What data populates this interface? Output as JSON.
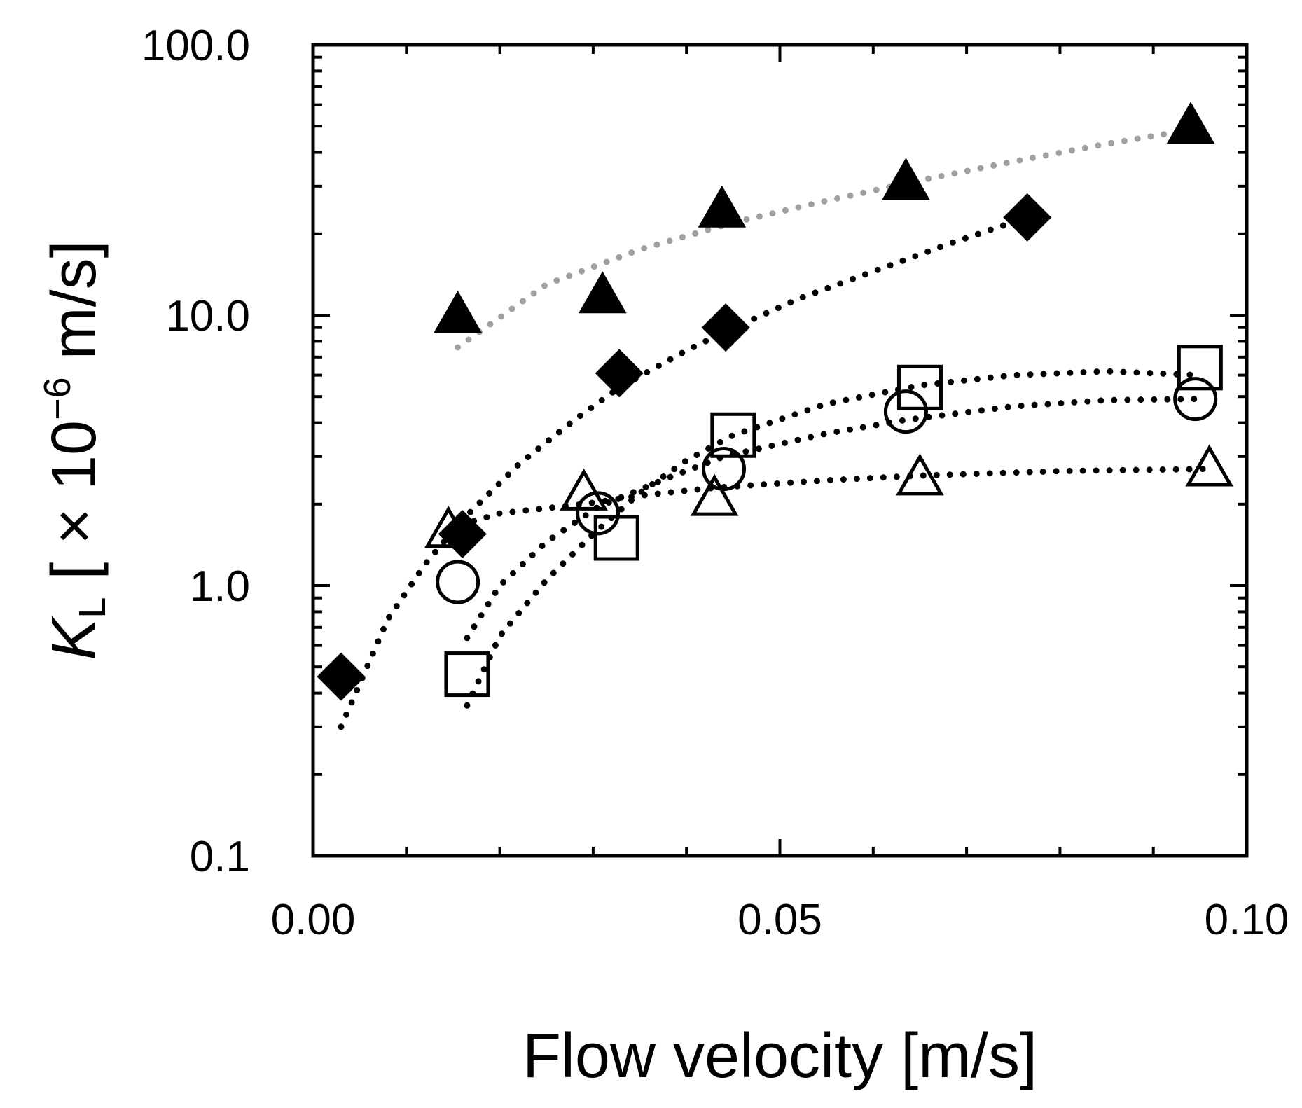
{
  "chart_data": {
    "type": "scatter",
    "title": "",
    "xlabel": "Flow velocity [m/s]",
    "ylabel": {
      "symbol": "K",
      "subscript": "L",
      "unit_open": " [ × 10",
      "exponent": "−6",
      "unit_close": " m/s]"
    },
    "xscale": "linear",
    "yscale": "log",
    "xlim": [
      0.0,
      0.1
    ],
    "ylim": [
      0.1,
      100.0
    ],
    "x_tick_labels": [
      {
        "value": 0.0,
        "label": "0.00"
      },
      {
        "value": 0.05,
        "label": "0.05"
      },
      {
        "value": 0.1,
        "label": "0.10"
      }
    ],
    "y_tick_labels": [
      {
        "value": 0.1,
        "label": "0.1"
      },
      {
        "value": 1.0,
        "label": "1.0"
      },
      {
        "value": 10.0,
        "label": "10.0"
      },
      {
        "value": 100.0,
        "label": "100.0"
      }
    ],
    "x_minor_ticks": [
      0.01,
      0.02,
      0.03,
      0.04,
      0.06,
      0.07,
      0.08,
      0.09
    ],
    "grid": false,
    "legend": "none",
    "series": [
      {
        "name": "filled-triangle",
        "marker": "triangle",
        "filled": true,
        "color": "#000000",
        "x": [
          0.0155,
          0.031,
          0.0438,
          0.0635,
          0.094
        ],
        "y": [
          10.0,
          11.8,
          24.5,
          31.0,
          50.0
        ],
        "fit": {
          "color": "#a0a0a0",
          "x": [
            0.0155,
            0.025,
            0.035,
            0.045,
            0.055,
            0.065,
            0.075,
            0.085,
            0.094
          ],
          "y": [
            7.6,
            13.0,
            17.5,
            22.0,
            26.5,
            31.5,
            37.0,
            43.0,
            48.5
          ]
        }
      },
      {
        "name": "filled-diamond",
        "marker": "diamond",
        "filled": true,
        "color": "#000000",
        "x": [
          0.003,
          0.016,
          0.0328,
          0.0442,
          0.0765
        ],
        "y": [
          0.46,
          1.55,
          6.1,
          9.0,
          23.0
        ],
        "fit": {
          "color": "#000000",
          "x": [
            0.003,
            0.008,
            0.012,
            0.016,
            0.022,
            0.028,
            0.0328,
            0.04,
            0.0442,
            0.052,
            0.06,
            0.068,
            0.0765
          ],
          "y": [
            0.3,
            0.75,
            1.2,
            1.75,
            2.8,
            4.1,
            5.4,
            7.4,
            8.7,
            11.5,
            14.5,
            18.3,
            23.0
          ]
        }
      },
      {
        "name": "open-square",
        "marker": "square",
        "filled": false,
        "color": "#000000",
        "x": [
          0.0165,
          0.0325,
          0.045,
          0.065,
          0.095
        ],
        "y": [
          0.47,
          1.5,
          3.6,
          5.4,
          6.4
        ],
        "fit": {
          "color": "#000000",
          "x": [
            0.0165,
            0.02,
            0.025,
            0.03,
            0.035,
            0.04,
            0.045,
            0.055,
            0.065,
            0.075,
            0.085,
            0.095
          ],
          "y": [
            0.36,
            0.65,
            1.05,
            1.55,
            2.2,
            2.9,
            3.6,
            4.7,
            5.5,
            6.0,
            6.2,
            6.0
          ]
        }
      },
      {
        "name": "open-circle",
        "marker": "circle",
        "filled": false,
        "color": "#000000",
        "x": [
          0.0155,
          0.0305,
          0.044,
          0.0635,
          0.0945
        ],
        "y": [
          1.03,
          1.85,
          2.7,
          4.4,
          4.9
        ],
        "fit": {
          "color": "#000000",
          "x": [
            0.0165,
            0.02,
            0.025,
            0.0305,
            0.038,
            0.044,
            0.055,
            0.0635,
            0.075,
            0.085,
            0.0945
          ],
          "y": [
            0.64,
            1.0,
            1.45,
            1.95,
            2.5,
            3.0,
            3.65,
            4.1,
            4.6,
            4.85,
            4.9
          ]
        }
      },
      {
        "name": "open-triangle",
        "marker": "triangle",
        "filled": false,
        "color": "#000000",
        "x": [
          0.0145,
          0.029,
          0.043,
          0.065,
          0.096
        ],
        "y": [
          1.6,
          2.2,
          2.1,
          2.5,
          2.7
        ],
        "fit": {
          "color": "#000000",
          "x": [
            0.0145,
            0.02,
            0.029,
            0.035,
            0.043,
            0.055,
            0.065,
            0.08,
            0.096
          ],
          "y": [
            1.62,
            1.85,
            2.0,
            2.15,
            2.3,
            2.45,
            2.55,
            2.65,
            2.7
          ]
        }
      }
    ]
  }
}
